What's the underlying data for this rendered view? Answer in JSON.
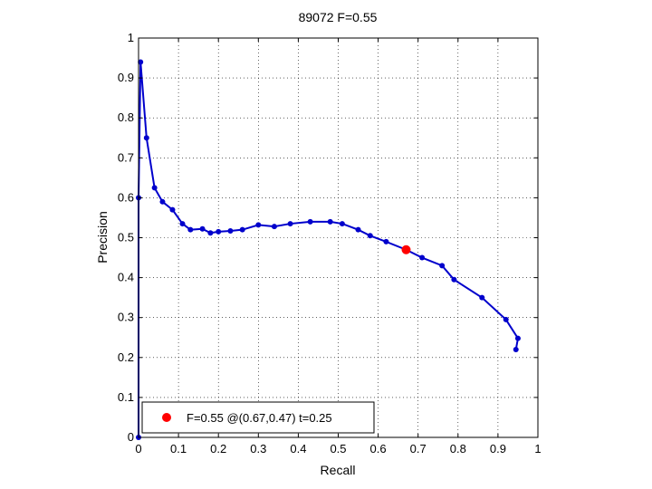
{
  "chart_data": {
    "type": "line",
    "title": "89072 F=0.55",
    "xlabel": "Recall",
    "ylabel": "Precision",
    "xlim": [
      0,
      1
    ],
    "ylim": [
      0,
      1
    ],
    "grid": true,
    "xticks": [
      "0",
      "0.1",
      "0.2",
      "0.3",
      "0.4",
      "0.5",
      "0.6",
      "0.7",
      "0.8",
      "0.9",
      "1"
    ],
    "yticks": [
      "0",
      "0.1",
      "0.2",
      "0.3",
      "0.4",
      "0.5",
      "0.6",
      "0.7",
      "0.8",
      "0.9",
      "1"
    ],
    "series_color": "#0000cc",
    "series": [
      {
        "x": [
          0.0,
          0.0,
          0.005,
          0.02,
          0.04,
          0.06,
          0.085,
          0.11,
          0.13,
          0.16,
          0.18,
          0.2,
          0.23,
          0.26,
          0.3,
          0.34,
          0.38,
          0.43,
          0.48,
          0.51,
          0.55,
          0.58,
          0.62,
          0.67,
          0.71,
          0.76,
          0.79,
          0.86,
          0.92,
          0.95,
          0.945
        ],
        "y": [
          0.0,
          0.6,
          0.94,
          0.75,
          0.625,
          0.59,
          0.57,
          0.535,
          0.52,
          0.522,
          0.512,
          0.515,
          0.517,
          0.52,
          0.532,
          0.528,
          0.535,
          0.54,
          0.54,
          0.535,
          0.52,
          0.505,
          0.49,
          0.47,
          0.45,
          0.43,
          0.395,
          0.35,
          0.295,
          0.248,
          0.22
        ]
      }
    ],
    "highlight": {
      "x": 0.67,
      "y": 0.47,
      "color": "#ff0000"
    },
    "legend": {
      "position": "bottom-left",
      "text": "F=0.55 @(0.67,0.47) t=0.25"
    }
  }
}
